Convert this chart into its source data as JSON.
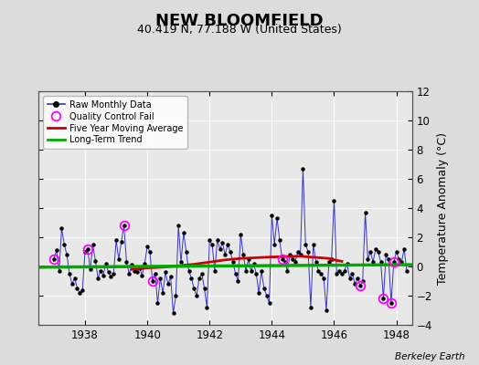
{
  "title": "NEW BLOOMFIELD",
  "subtitle": "40.419 N, 77.188 W (United States)",
  "ylabel": "Temperature Anomaly (°C)",
  "watermark": "Berkeley Earth",
  "bg_color": "#dcdcdc",
  "plot_bg_color": "#e8e8e8",
  "xlim": [
    1936.5,
    1948.5
  ],
  "ylim": [
    -4,
    12
  ],
  "yticks": [
    -4,
    -2,
    0,
    2,
    4,
    6,
    8,
    10,
    12
  ],
  "xticks": [
    1938,
    1940,
    1942,
    1944,
    1946,
    1948
  ],
  "raw_data": [
    [
      1937.0,
      0.5
    ],
    [
      1937.083,
      1.1
    ],
    [
      1937.167,
      -0.3
    ],
    [
      1937.25,
      2.6
    ],
    [
      1937.333,
      1.5
    ],
    [
      1937.417,
      0.8
    ],
    [
      1937.5,
      -0.5
    ],
    [
      1937.583,
      -1.2
    ],
    [
      1937.667,
      -0.8
    ],
    [
      1937.75,
      -1.5
    ],
    [
      1937.833,
      -1.8
    ],
    [
      1937.917,
      -1.6
    ],
    [
      1938.0,
      1.0
    ],
    [
      1938.083,
      1.2
    ],
    [
      1938.167,
      -0.2
    ],
    [
      1938.25,
      1.5
    ],
    [
      1938.333,
      0.4
    ],
    [
      1938.417,
      -0.8
    ],
    [
      1938.5,
      -0.3
    ],
    [
      1938.583,
      -0.6
    ],
    [
      1938.667,
      0.2
    ],
    [
      1938.75,
      -0.4
    ],
    [
      1938.833,
      -0.7
    ],
    [
      1938.917,
      -0.5
    ],
    [
      1939.0,
      1.8
    ],
    [
      1939.083,
      0.5
    ],
    [
      1939.167,
      1.7
    ],
    [
      1939.25,
      2.8
    ],
    [
      1939.333,
      0.3
    ],
    [
      1939.417,
      -0.5
    ],
    [
      1939.5,
      0.1
    ],
    [
      1939.583,
      -0.3
    ],
    [
      1939.667,
      -0.4
    ],
    [
      1939.75,
      -0.1
    ],
    [
      1939.833,
      -0.6
    ],
    [
      1939.917,
      0.2
    ],
    [
      1940.0,
      1.4
    ],
    [
      1940.083,
      1.0
    ],
    [
      1940.167,
      -1.0
    ],
    [
      1940.25,
      -0.5
    ],
    [
      1940.333,
      -2.5
    ],
    [
      1940.417,
      -0.8
    ],
    [
      1940.5,
      -1.8
    ],
    [
      1940.583,
      -0.4
    ],
    [
      1940.667,
      -1.2
    ],
    [
      1940.75,
      -0.7
    ],
    [
      1940.833,
      -3.2
    ],
    [
      1940.917,
      -2.0
    ],
    [
      1941.0,
      2.8
    ],
    [
      1941.083,
      0.3
    ],
    [
      1941.167,
      2.3
    ],
    [
      1941.25,
      1.0
    ],
    [
      1941.333,
      -0.3
    ],
    [
      1941.417,
      -0.8
    ],
    [
      1941.5,
      -1.5
    ],
    [
      1941.583,
      -2.0
    ],
    [
      1941.667,
      -0.8
    ],
    [
      1941.75,
      -0.5
    ],
    [
      1941.833,
      -1.5
    ],
    [
      1941.917,
      -2.8
    ],
    [
      1942.0,
      1.8
    ],
    [
      1942.083,
      1.5
    ],
    [
      1942.167,
      -0.3
    ],
    [
      1942.25,
      1.8
    ],
    [
      1942.333,
      1.2
    ],
    [
      1942.417,
      1.6
    ],
    [
      1942.5,
      0.8
    ],
    [
      1942.583,
      1.5
    ],
    [
      1942.667,
      1.0
    ],
    [
      1942.75,
      0.3
    ],
    [
      1942.833,
      -0.5
    ],
    [
      1942.917,
      -1.0
    ],
    [
      1943.0,
      2.2
    ],
    [
      1943.083,
      0.8
    ],
    [
      1943.167,
      -0.3
    ],
    [
      1943.25,
      0.5
    ],
    [
      1943.333,
      -0.3
    ],
    [
      1943.417,
      0.2
    ],
    [
      1943.5,
      -0.5
    ],
    [
      1943.583,
      -1.8
    ],
    [
      1943.667,
      -0.3
    ],
    [
      1943.75,
      -1.5
    ],
    [
      1943.833,
      -2.0
    ],
    [
      1943.917,
      -2.5
    ],
    [
      1944.0,
      3.5
    ],
    [
      1944.083,
      1.5
    ],
    [
      1944.167,
      3.3
    ],
    [
      1944.25,
      1.8
    ],
    [
      1944.333,
      0.5
    ],
    [
      1944.417,
      0.3
    ],
    [
      1944.5,
      -0.3
    ],
    [
      1944.583,
      0.8
    ],
    [
      1944.667,
      0.5
    ],
    [
      1944.75,
      0.3
    ],
    [
      1944.833,
      1.0
    ],
    [
      1944.917,
      0.8
    ],
    [
      1945.0,
      6.7
    ],
    [
      1945.083,
      1.5
    ],
    [
      1945.167,
      1.0
    ],
    [
      1945.25,
      -2.8
    ],
    [
      1945.333,
      1.5
    ],
    [
      1945.417,
      0.3
    ],
    [
      1945.5,
      -0.3
    ],
    [
      1945.583,
      -0.5
    ],
    [
      1945.667,
      -0.8
    ],
    [
      1945.75,
      -3.0
    ],
    [
      1945.833,
      0.3
    ],
    [
      1945.917,
      0.5
    ],
    [
      1946.0,
      4.5
    ],
    [
      1946.083,
      -0.5
    ],
    [
      1946.167,
      -0.3
    ],
    [
      1946.25,
      -0.5
    ],
    [
      1946.333,
      -0.3
    ],
    [
      1946.417,
      0.2
    ],
    [
      1946.5,
      -0.8
    ],
    [
      1946.583,
      -0.5
    ],
    [
      1946.667,
      -1.2
    ],
    [
      1946.75,
      -0.8
    ],
    [
      1946.833,
      -1.3
    ],
    [
      1946.917,
      -1.0
    ],
    [
      1947.0,
      3.7
    ],
    [
      1947.083,
      0.5
    ],
    [
      1947.167,
      1.0
    ],
    [
      1947.25,
      0.3
    ],
    [
      1947.333,
      1.2
    ],
    [
      1947.417,
      1.0
    ],
    [
      1947.5,
      0.3
    ],
    [
      1947.583,
      -2.2
    ],
    [
      1947.667,
      0.8
    ],
    [
      1947.75,
      0.5
    ],
    [
      1947.833,
      -2.5
    ],
    [
      1947.917,
      0.3
    ],
    [
      1948.0,
      1.0
    ],
    [
      1948.083,
      0.5
    ],
    [
      1948.167,
      0.3
    ],
    [
      1948.25,
      1.2
    ],
    [
      1948.333,
      -0.3
    ]
  ],
  "qc_fail": [
    [
      1937.0,
      0.5
    ],
    [
      1938.083,
      1.2
    ],
    [
      1939.25,
      2.8
    ],
    [
      1940.167,
      -1.0
    ],
    [
      1944.333,
      0.5
    ],
    [
      1946.833,
      -1.3
    ],
    [
      1947.583,
      -2.2
    ],
    [
      1947.833,
      -2.5
    ],
    [
      1947.917,
      0.3
    ]
  ],
  "moving_avg_x": [
    1939.5,
    1939.75,
    1940.0,
    1940.5,
    1941.0,
    1941.5,
    1942.0,
    1942.5,
    1943.0,
    1943.5,
    1944.0,
    1944.5,
    1944.917,
    1945.833,
    1946.0,
    1946.25
  ],
  "moving_avg_y": [
    -0.2,
    -0.15,
    -0.1,
    -0.05,
    0.05,
    0.15,
    0.3,
    0.45,
    0.55,
    0.6,
    0.65,
    0.68,
    0.7,
    0.55,
    0.45,
    0.35
  ],
  "trend_x": [
    1936.5,
    1948.5
  ],
  "trend_y": [
    -0.05,
    0.12
  ],
  "line_color": "#3333cc",
  "marker_color": "#000000",
  "qc_color": "#ff00ff",
  "moving_avg_color": "#cc0000",
  "trend_color": "#00aa00",
  "legend_bg": "#ffffff",
  "title_fontsize": 13,
  "subtitle_fontsize": 9,
  "tick_fontsize": 8.5,
  "ylabel_fontsize": 9
}
